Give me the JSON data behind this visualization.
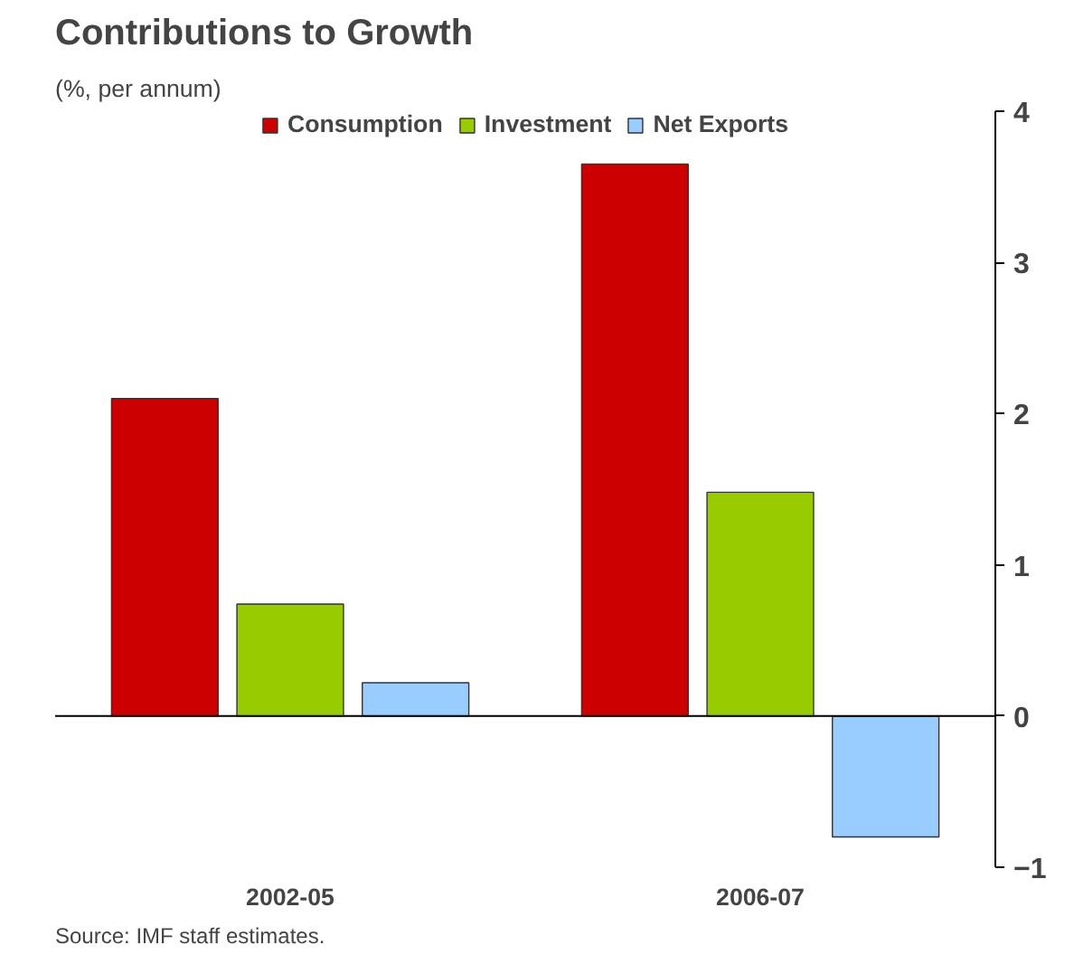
{
  "chart_data": {
    "type": "bar",
    "title": "Contributions to Growth",
    "subtitle": "(%, per annum)",
    "categories": [
      "2002-05",
      "2006-07"
    ],
    "series": [
      {
        "name": "Consumption",
        "color": "#cc0000",
        "values": [
          2.1,
          3.65
        ]
      },
      {
        "name": "Investment",
        "color": "#99cc00",
        "values": [
          0.74,
          1.48
        ]
      },
      {
        "name": "Net Exports",
        "color": "#99ccff",
        "values": [
          0.22,
          -0.8
        ]
      }
    ],
    "ylim": [
      -1,
      4
    ],
    "yticks": [
      -1,
      0,
      1,
      2,
      3,
      4
    ],
    "legend": "top",
    "annotations": [
      "Source: IMF staff estimates."
    ]
  }
}
